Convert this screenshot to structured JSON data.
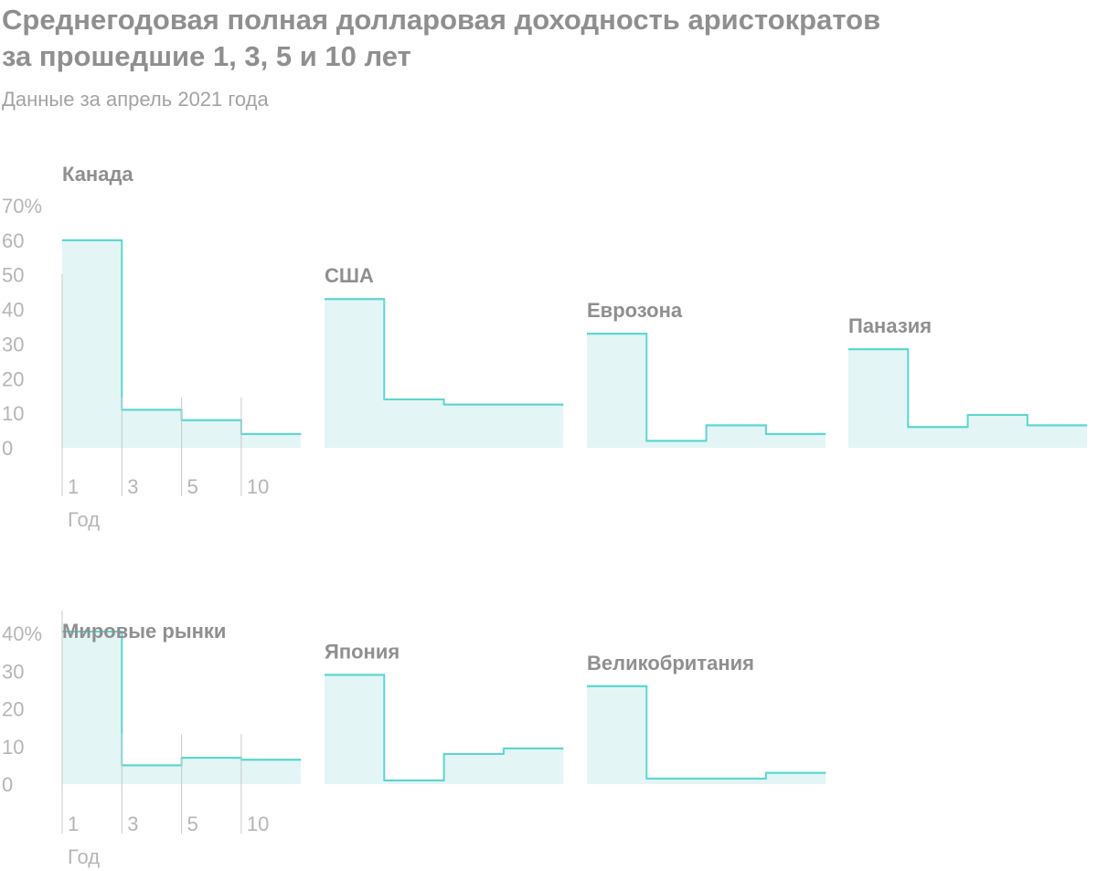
{
  "title_line1": "Среднегодовая полная долларовая доходность аристократов",
  "title_line2": "за прошедшие 1, 3, 5 и 10 лет",
  "subtitle": "Данные за апрель 2021 года",
  "colors": {
    "line": "#5ad7cf",
    "fill": "#e3f5f5",
    "text": "#8f8f8f",
    "axis": "#b5b5b5"
  },
  "chart_data": [
    {
      "type": "area",
      "step": true,
      "x_categories": [
        "1",
        "3",
        "5",
        "10"
      ],
      "xlabel": "Год",
      "y_ticks": [
        "0",
        "10",
        "20",
        "30",
        "40",
        "50",
        "60",
        "70%"
      ],
      "ylim": [
        0,
        70
      ],
      "panels": [
        {
          "name": "Канада",
          "values": [
            60,
            11,
            8,
            4
          ],
          "show_y_axis": true,
          "show_x_axis": true
        },
        {
          "name": "США",
          "values": [
            43,
            14,
            12.5,
            12.5
          ],
          "show_y_axis": false,
          "show_x_axis": false
        },
        {
          "name": "Еврозона",
          "values": [
            33,
            2,
            6.5,
            4
          ],
          "show_y_axis": false,
          "show_x_axis": false
        },
        {
          "name": "Паназия",
          "values": [
            28.5,
            6,
            9.5,
            6.5
          ],
          "show_y_axis": false,
          "show_x_axis": false
        }
      ]
    },
    {
      "type": "area",
      "step": true,
      "x_categories": [
        "1",
        "3",
        "5",
        "10"
      ],
      "xlabel": "Год",
      "y_ticks": [
        "0",
        "10",
        "20",
        "30",
        "40%"
      ],
      "ylim": [
        0,
        40
      ],
      "panels": [
        {
          "name": "Мировые рынки",
          "values": [
            40.5,
            5,
            7,
            6.5
          ],
          "show_y_axis": true,
          "show_x_axis": true
        },
        {
          "name": "Япония",
          "values": [
            29,
            1,
            8,
            9.5
          ],
          "show_y_axis": false,
          "show_x_axis": false
        },
        {
          "name": "Великобритания",
          "values": [
            26,
            1.5,
            1.5,
            3
          ],
          "show_y_axis": false,
          "show_x_axis": false
        }
      ]
    }
  ]
}
